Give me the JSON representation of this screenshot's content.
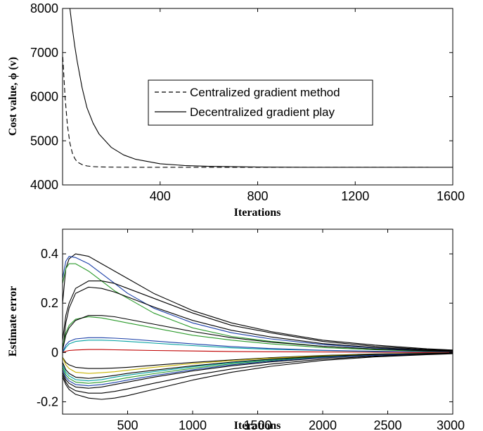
{
  "chart_data": [
    {
      "type": "line",
      "title": "",
      "xlabel": "Iterations",
      "ylabel": "Cost value, ϕ (v)",
      "xlim": [
        0,
        1600
      ],
      "ylim": [
        4000,
        8000
      ],
      "xticks": [
        400,
        800,
        1200,
        1600
      ],
      "yticks": [
        4000,
        5000,
        6000,
        7000,
        8000
      ],
      "grid": false,
      "legend_placement": "center-right",
      "series": [
        {
          "name": "Centralized gradient method",
          "style": "dashed",
          "color": "#000000",
          "x": [
            1,
            10,
            20,
            30,
            40,
            50,
            60,
            80,
            100,
            125,
            150,
            200,
            300,
            400,
            600,
            800,
            1000,
            1200,
            1500
          ],
          "y": [
            6900,
            6000,
            5350,
            4950,
            4720,
            4600,
            4520,
            4460,
            4430,
            4415,
            4408,
            4403,
            4400,
            4400,
            4400,
            4400,
            4400,
            4400,
            4400
          ]
        },
        {
          "name": "Decentralized gradient play",
          "style": "solid",
          "color": "#000000",
          "x": [
            30,
            40,
            50,
            60,
            80,
            100,
            125,
            150,
            200,
            250,
            300,
            400,
            500,
            600,
            800,
            1000,
            1200,
            1600
          ],
          "y": [
            8000,
            7550,
            7150,
            6800,
            6200,
            5750,
            5400,
            5150,
            4850,
            4680,
            4580,
            4480,
            4440,
            4420,
            4405,
            4400,
            4400,
            4400
          ]
        }
      ]
    },
    {
      "type": "line",
      "title": "",
      "xlabel": "Iterations",
      "ylabel": "Estimate error",
      "xlim": [
        0,
        3000
      ],
      "ylim": [
        -0.25,
        0.5
      ],
      "xticks": [
        500,
        1000,
        1500,
        2000,
        2500,
        3000
      ],
      "yticks": [
        -0.2,
        0,
        0.2,
        0.4
      ],
      "grid": false,
      "x": [
        0,
        25,
        50,
        100,
        200,
        300,
        400,
        500,
        700,
        1000,
        1300,
        1600,
        2000,
        2400,
        2800,
        3000
      ],
      "series": [
        {
          "color": "#000000",
          "values": [
            0.2,
            0.34,
            0.38,
            0.4,
            0.39,
            0.36,
            0.33,
            0.3,
            0.24,
            0.17,
            0.12,
            0.085,
            0.05,
            0.03,
            0.015,
            0.01
          ]
        },
        {
          "color": "#1a3fa8",
          "values": [
            0.3,
            0.37,
            0.39,
            0.385,
            0.36,
            0.32,
            0.28,
            0.24,
            0.18,
            0.12,
            0.08,
            0.055,
            0.032,
            0.018,
            0.008,
            0.005
          ]
        },
        {
          "color": "#2a9a2a",
          "values": [
            0.28,
            0.34,
            0.36,
            0.36,
            0.33,
            0.29,
            0.25,
            0.22,
            0.16,
            0.1,
            0.065,
            0.045,
            0.025,
            0.014,
            0.006,
            0.004
          ]
        },
        {
          "color": "#000000",
          "values": [
            0.05,
            0.15,
            0.2,
            0.26,
            0.29,
            0.29,
            0.28,
            0.26,
            0.22,
            0.16,
            0.11,
            0.08,
            0.045,
            0.025,
            0.012,
            0.008
          ]
        },
        {
          "color": "#000000",
          "values": [
            0.0,
            0.12,
            0.18,
            0.24,
            0.265,
            0.26,
            0.245,
            0.225,
            0.185,
            0.13,
            0.09,
            0.063,
            0.036,
            0.02,
            0.01,
            0.006
          ]
        },
        {
          "color": "#2a9a2a",
          "values": [
            0.02,
            0.08,
            0.11,
            0.135,
            0.145,
            0.14,
            0.13,
            0.12,
            0.1,
            0.07,
            0.05,
            0.035,
            0.02,
            0.011,
            0.005,
            0.003
          ]
        },
        {
          "color": "#000000",
          "values": [
            0.01,
            0.07,
            0.1,
            0.13,
            0.15,
            0.15,
            0.145,
            0.135,
            0.115,
            0.085,
            0.06,
            0.042,
            0.025,
            0.014,
            0.007,
            0.004
          ]
        },
        {
          "color": "#00a0a0",
          "values": [
            0.0,
            0.02,
            0.035,
            0.045,
            0.05,
            0.05,
            0.048,
            0.045,
            0.038,
            0.028,
            0.019,
            0.013,
            0.008,
            0.004,
            0.002,
            0.001
          ]
        },
        {
          "color": "#1a3fa8",
          "values": [
            0.0,
            0.03,
            0.045,
            0.055,
            0.06,
            0.06,
            0.058,
            0.055,
            0.047,
            0.035,
            0.024,
            0.016,
            0.009,
            0.005,
            0.002,
            0.001
          ]
        },
        {
          "color": "#c00000",
          "values": [
            0.0,
            0.005,
            0.008,
            0.01,
            0.012,
            0.012,
            0.011,
            0.01,
            0.008,
            0.006,
            0.004,
            0.003,
            0.002,
            0.001,
            0.0,
            0.0
          ]
        },
        {
          "color": "#000000",
          "values": [
            -0.02,
            -0.04,
            -0.05,
            -0.06,
            -0.065,
            -0.065,
            -0.063,
            -0.06,
            -0.052,
            -0.04,
            -0.03,
            -0.021,
            -0.012,
            -0.006,
            -0.003,
            -0.002
          ]
        },
        {
          "color": "#c8b400",
          "values": [
            -0.02,
            -0.05,
            -0.065,
            -0.08,
            -0.085,
            -0.082,
            -0.078,
            -0.072,
            -0.06,
            -0.045,
            -0.033,
            -0.023,
            -0.013,
            -0.007,
            -0.003,
            -0.002
          ]
        },
        {
          "color": "#00a0a0",
          "values": [
            -0.05,
            -0.08,
            -0.095,
            -0.11,
            -0.115,
            -0.11,
            -0.1,
            -0.092,
            -0.078,
            -0.058,
            -0.042,
            -0.029,
            -0.016,
            -0.009,
            -0.004,
            -0.002
          ]
        },
        {
          "color": "#2a9a2a",
          "values": [
            -0.06,
            -0.09,
            -0.105,
            -0.12,
            -0.125,
            -0.12,
            -0.112,
            -0.102,
            -0.086,
            -0.064,
            -0.046,
            -0.032,
            -0.018,
            -0.01,
            -0.005,
            -0.003
          ]
        },
        {
          "color": "#000000",
          "values": [
            -0.08,
            -0.11,
            -0.125,
            -0.14,
            -0.145,
            -0.14,
            -0.13,
            -0.12,
            -0.1,
            -0.075,
            -0.054,
            -0.038,
            -0.022,
            -0.012,
            -0.006,
            -0.003
          ]
        },
        {
          "color": "#1a3fa8",
          "values": [
            -0.07,
            -0.1,
            -0.115,
            -0.13,
            -0.135,
            -0.13,
            -0.122,
            -0.112,
            -0.094,
            -0.07,
            -0.05,
            -0.035,
            -0.02,
            -0.011,
            -0.005,
            -0.003
          ]
        },
        {
          "color": "#000000",
          "values": [
            -0.09,
            -0.12,
            -0.14,
            -0.155,
            -0.165,
            -0.165,
            -0.158,
            -0.148,
            -0.125,
            -0.093,
            -0.067,
            -0.047,
            -0.027,
            -0.015,
            -0.007,
            -0.004
          ]
        },
        {
          "color": "#000000",
          "values": [
            -0.1,
            -0.13,
            -0.15,
            -0.17,
            -0.185,
            -0.19,
            -0.185,
            -0.175,
            -0.15,
            -0.112,
            -0.08,
            -0.056,
            -0.032,
            -0.018,
            -0.009,
            -0.005
          ]
        },
        {
          "color": "#000000",
          "values": [
            -0.04,
            -0.07,
            -0.085,
            -0.1,
            -0.105,
            -0.1,
            -0.093,
            -0.085,
            -0.072,
            -0.054,
            -0.039,
            -0.027,
            -0.015,
            -0.008,
            -0.004,
            -0.002
          ]
        }
      ]
    }
  ]
}
